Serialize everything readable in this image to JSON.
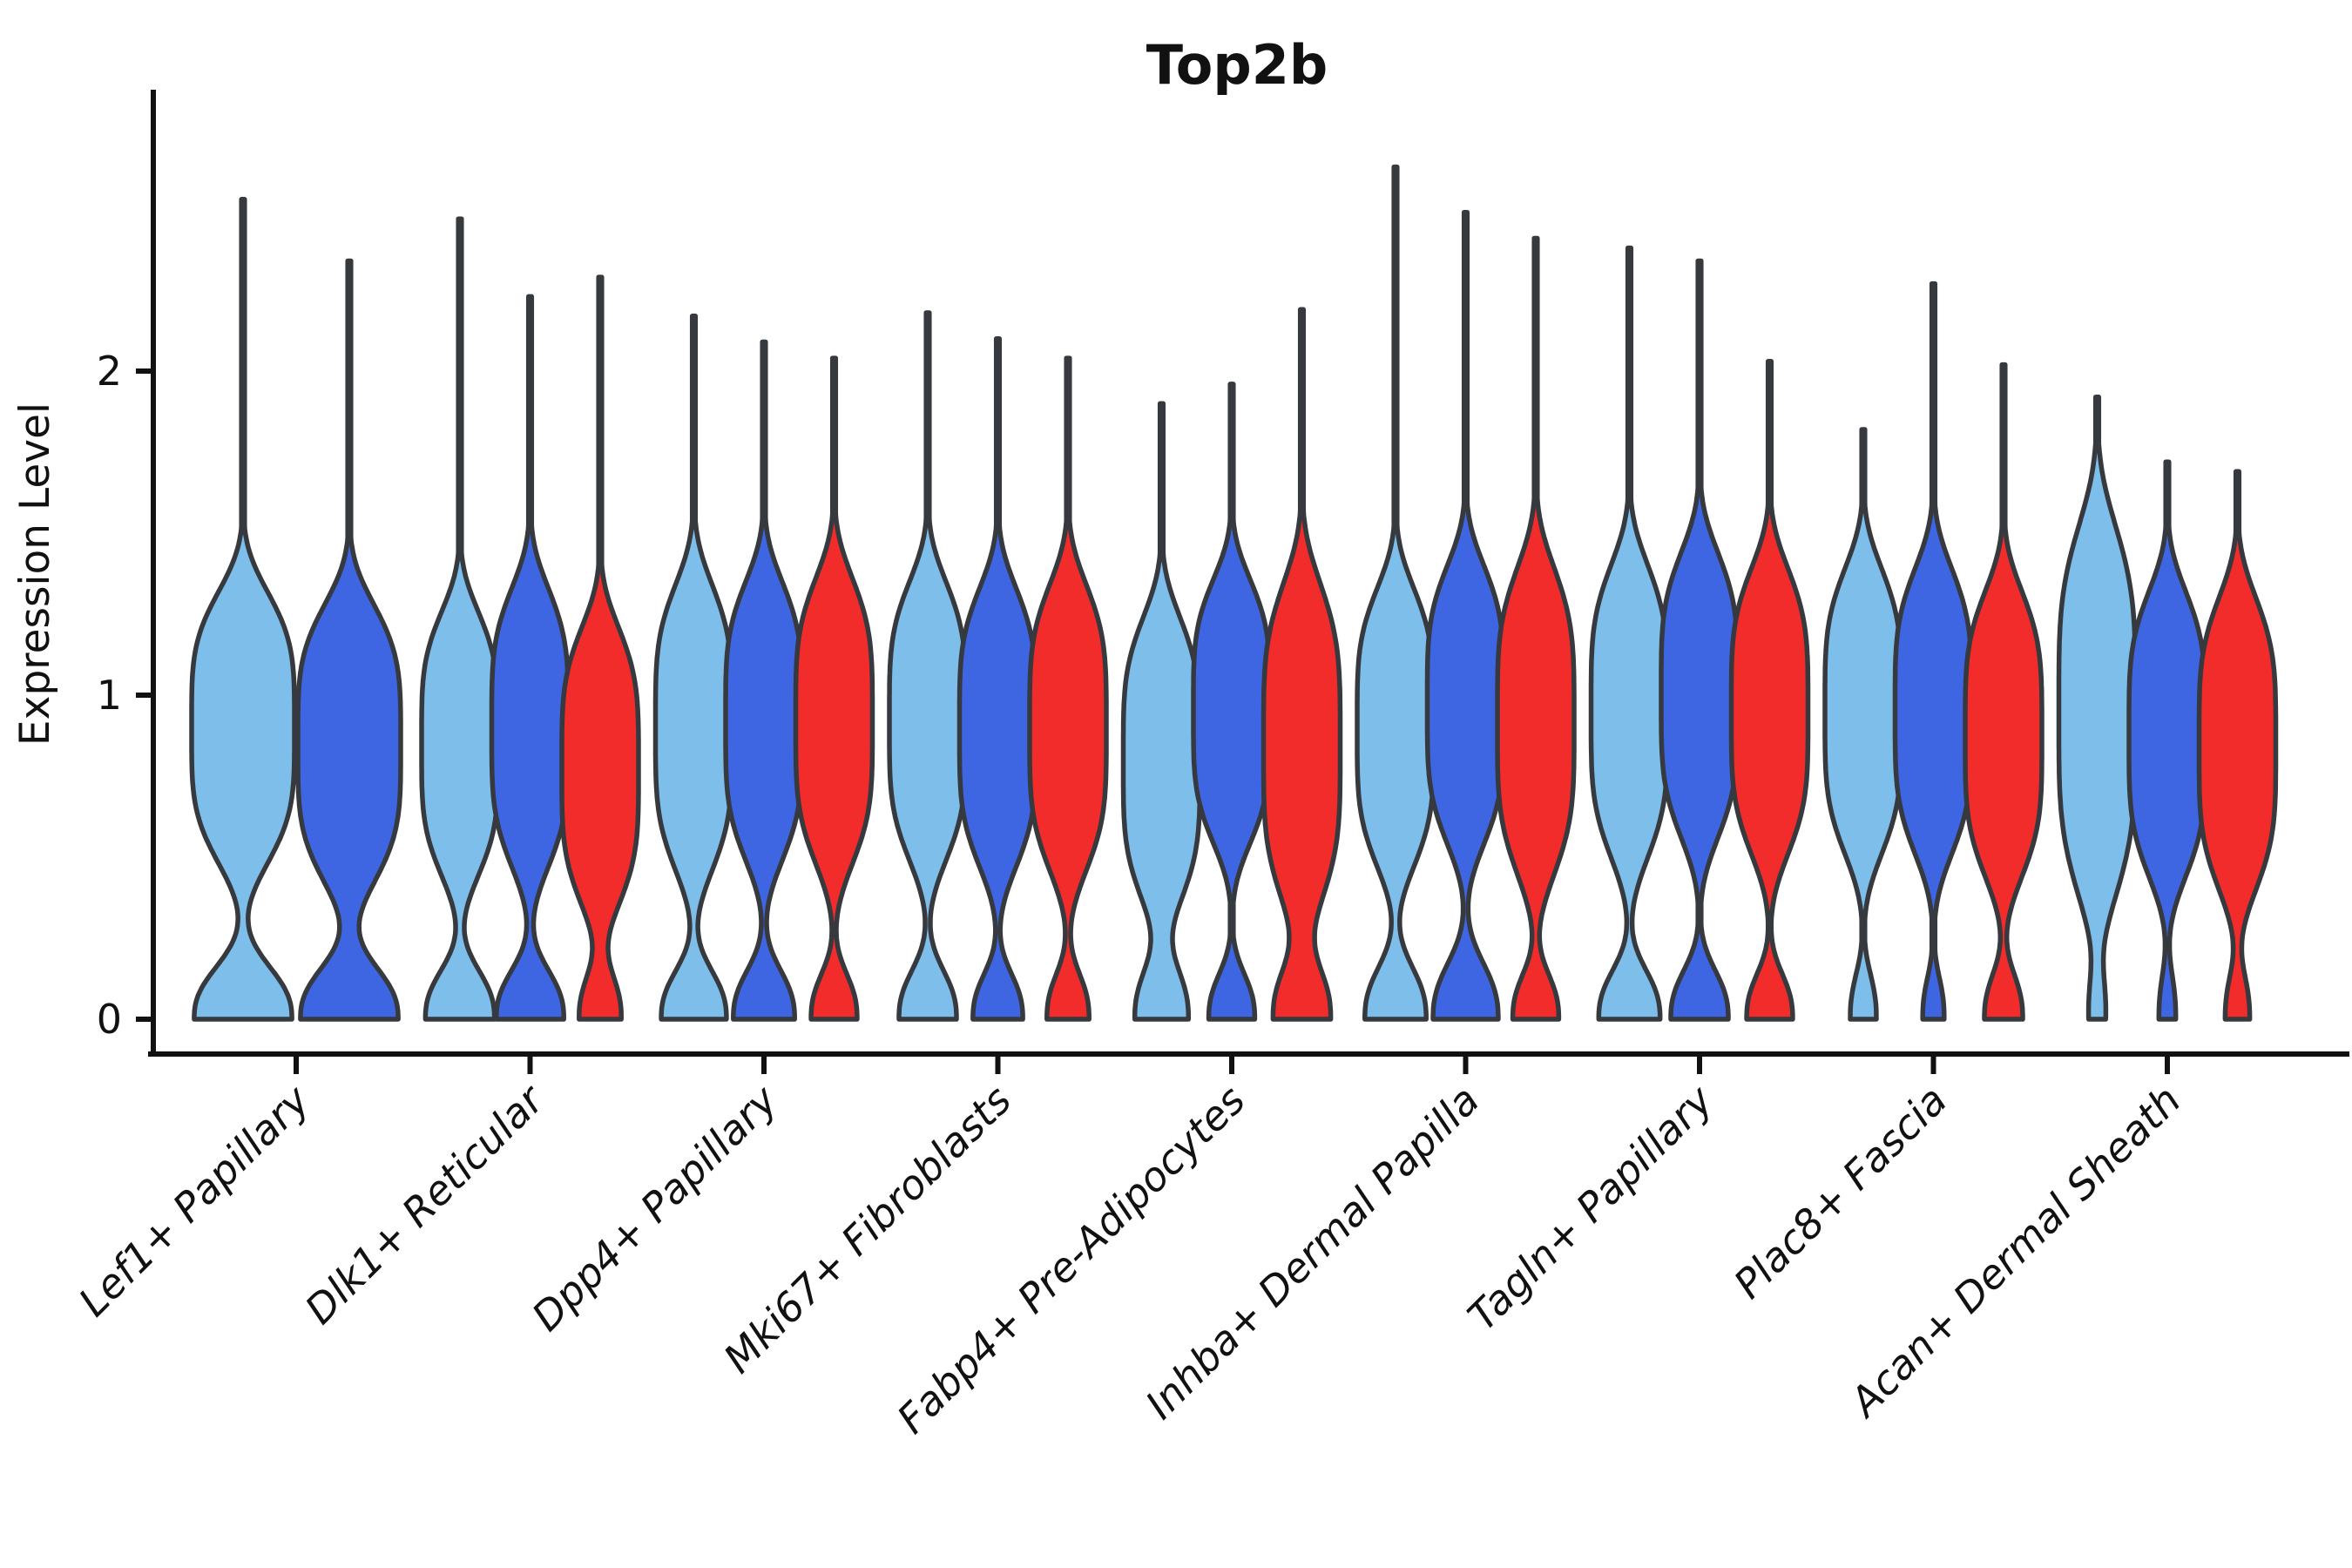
{
  "chart_data": {
    "type": "violin",
    "title": "Top2b",
    "ylabel": "Expression Level",
    "xlabel": "",
    "yticks": [
      0,
      1,
      2
    ],
    "ylim": [
      -0.11,
      2.85
    ],
    "grid": false,
    "legend": "none",
    "palette": {
      "light_blue": "#7DBEEB",
      "royal_blue": "#3E66E3",
      "red": "#F22B2B",
      "outline": "#36393D",
      "axis": "#111111"
    },
    "categories": [
      "Lef1+ Papillary",
      "Dlk1+ Reticular",
      "Dpp4+ Papillary",
      "Mki67+ Fibroblasts",
      "Fabp4+ Pre-Adipocytes",
      "Inhba+ Dermal Papilla",
      "Tagln+ Papillary",
      "Plac8+ Fascia",
      "Acan+ Dermal Sheath"
    ],
    "groups": [
      {
        "category": "Lef1+ Papillary",
        "violins": [
          {
            "color": "light_blue",
            "max": 2.53,
            "peak": 0.9,
            "spread": 0.38,
            "base": 0.95,
            "base_spread": 0.15
          },
          {
            "color": "royal_blue",
            "max": 2.34,
            "peak": 0.85,
            "spread": 0.39,
            "base": 0.95,
            "base_spread": 0.15
          }
        ]
      },
      {
        "category": "Dlk1+ Reticular",
        "violins": [
          {
            "color": "light_blue",
            "max": 2.47,
            "peak": 0.85,
            "spread": 0.37,
            "base": 0.9,
            "base_spread": 0.14
          },
          {
            "color": "royal_blue",
            "max": 2.23,
            "peak": 0.9,
            "spread": 0.39,
            "base": 0.88,
            "base_spread": 0.14
          },
          {
            "color": "red",
            "max": 2.29,
            "peak": 0.78,
            "spread": 0.39,
            "base": 0.55,
            "base_spread": 0.13
          }
        ]
      },
      {
        "category": "Dpp4+ Papillary",
        "violins": [
          {
            "color": "light_blue",
            "max": 2.17,
            "peak": 0.9,
            "spread": 0.4,
            "base": 0.85,
            "base_spread": 0.14
          },
          {
            "color": "royal_blue",
            "max": 2.09,
            "peak": 0.92,
            "spread": 0.39,
            "base": 0.8,
            "base_spread": 0.14
          },
          {
            "color": "red",
            "max": 2.04,
            "peak": 0.92,
            "spread": 0.4,
            "base": 0.6,
            "base_spread": 0.13
          }
        ]
      },
      {
        "category": "Mki67+ Fibroblasts",
        "violins": [
          {
            "color": "light_blue",
            "max": 2.18,
            "peak": 0.92,
            "spread": 0.39,
            "base": 0.75,
            "base_spread": 0.14
          },
          {
            "color": "royal_blue",
            "max": 2.1,
            "peak": 0.9,
            "spread": 0.39,
            "base": 0.65,
            "base_spread": 0.13
          },
          {
            "color": "red",
            "max": 2.04,
            "peak": 0.9,
            "spread": 0.4,
            "base": 0.55,
            "base_spread": 0.13
          }
        ]
      },
      {
        "category": "Fabp4+ Pre-Adipocytes",
        "violins": [
          {
            "color": "light_blue",
            "max": 1.9,
            "peak": 0.8,
            "spread": 0.4,
            "base": 0.7,
            "base_spread": 0.15
          },
          {
            "color": "royal_blue",
            "max": 1.96,
            "peak": 0.95,
            "spread": 0.37,
            "base": 0.6,
            "base_spread": 0.13
          },
          {
            "color": "red",
            "max": 2.19,
            "peak": 0.85,
            "spread": 0.45,
            "base": 0.75,
            "base_spread": 0.15
          }
        ]
      },
      {
        "category": "Inhba+ Dermal Papilla",
        "violins": [
          {
            "color": "light_blue",
            "max": 2.63,
            "peak": 0.9,
            "spread": 0.39,
            "base": 0.8,
            "base_spread": 0.15
          },
          {
            "color": "royal_blue",
            "max": 2.49,
            "peak": 0.97,
            "spread": 0.39,
            "base": 0.85,
            "base_spread": 0.16
          },
          {
            "color": "red",
            "max": 2.41,
            "peak": 0.92,
            "spread": 0.43,
            "base": 0.6,
            "base_spread": 0.13
          }
        ]
      },
      {
        "category": "Tagln+ Papillary",
        "violins": [
          {
            "color": "light_blue",
            "max": 2.38,
            "peak": 0.95,
            "spread": 0.41,
            "base": 0.8,
            "base_spread": 0.14
          },
          {
            "color": "royal_blue",
            "max": 2.34,
            "peak": 1.0,
            "spread": 0.4,
            "base": 0.75,
            "base_spread": 0.14
          },
          {
            "color": "red",
            "max": 2.03,
            "peak": 0.95,
            "spread": 0.4,
            "base": 0.6,
            "base_spread": 0.13
          }
        ]
      },
      {
        "category": "Plac8+ Fascia",
        "violins": [
          {
            "color": "light_blue",
            "max": 1.82,
            "peak": 0.95,
            "spread": 0.4,
            "base": 0.34,
            "base_spread": 0.13
          },
          {
            "color": "royal_blue",
            "max": 2.27,
            "peak": 0.95,
            "spread": 0.4,
            "base": 0.28,
            "base_spread": 0.12
          },
          {
            "color": "red",
            "max": 2.02,
            "peak": 0.88,
            "spread": 0.4,
            "base": 0.5,
            "base_spread": 0.13
          }
        ]
      },
      {
        "category": "Acan+ Dermal Sheath",
        "violins": [
          {
            "color": "light_blue",
            "max": 1.92,
            "peak": 0.95,
            "spread": 0.52,
            "base": 0.22,
            "base_spread": 0.13
          },
          {
            "color": "royal_blue",
            "max": 1.72,
            "peak": 0.88,
            "spread": 0.4,
            "base": 0.22,
            "base_spread": 0.13
          },
          {
            "color": "red",
            "max": 1.69,
            "peak": 0.85,
            "spread": 0.41,
            "base": 0.32,
            "base_spread": 0.13
          }
        ]
      }
    ]
  }
}
